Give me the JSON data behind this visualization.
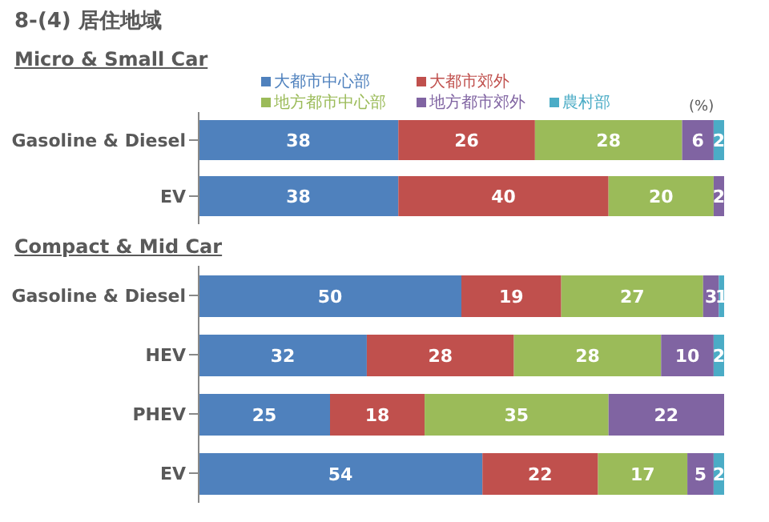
{
  "chart_data": [
    {
      "type": "bar",
      "orientation": "horizontal",
      "stacked": true,
      "title": "8-(4)  居住地域",
      "subtitle": "Micro & Small Car",
      "categories": [
        "Gasoline & Diesel",
        "EV"
      ],
      "series": [
        {
          "name": "大都市中心部",
          "color": "#4f81bd",
          "values": [
            38,
            38
          ]
        },
        {
          "name": "大都市郊外",
          "color": "#c0504d",
          "values": [
            26,
            40
          ]
        },
        {
          "name": "地方都市中心部",
          "color": "#9bbb59",
          "values": [
            28,
            20
          ]
        },
        {
          "name": "地方都市郊外",
          "color": "#8064a2",
          "values": [
            6,
            2
          ]
        },
        {
          "name": "農村部",
          "color": "#4bacc6",
          "values": [
            2,
            null
          ]
        }
      ],
      "xlim": [
        0,
        100
      ],
      "tick_labels": "y",
      "data_labels": true,
      "legend": "top",
      "grid": false,
      "annotations": [
        "(%)"
      ]
    },
    {
      "type": "bar",
      "orientation": "horizontal",
      "stacked": true,
      "title": "Compact & Mid Car",
      "categories": [
        "Gasoline & Diesel",
        "HEV",
        "PHEV",
        "EV"
      ],
      "series": [
        {
          "color": "#4f81bd",
          "values": [
            50,
            32,
            25,
            54
          ]
        },
        {
          "color": "#c0504d",
          "values": [
            19,
            28,
            18,
            22
          ]
        },
        {
          "color": "#9bbb59",
          "values": [
            27,
            28,
            35,
            17
          ]
        },
        {
          "color": "#8064a2",
          "values": [
            3,
            10,
            22,
            5
          ]
        },
        {
          "color": "#4bacc6",
          "values": [
            1,
            2,
            null,
            2
          ]
        }
      ],
      "xlim": [
        0,
        100
      ],
      "tick_labels": "y",
      "data_labels": true,
      "legend": false,
      "grid": false
    }
  ]
}
